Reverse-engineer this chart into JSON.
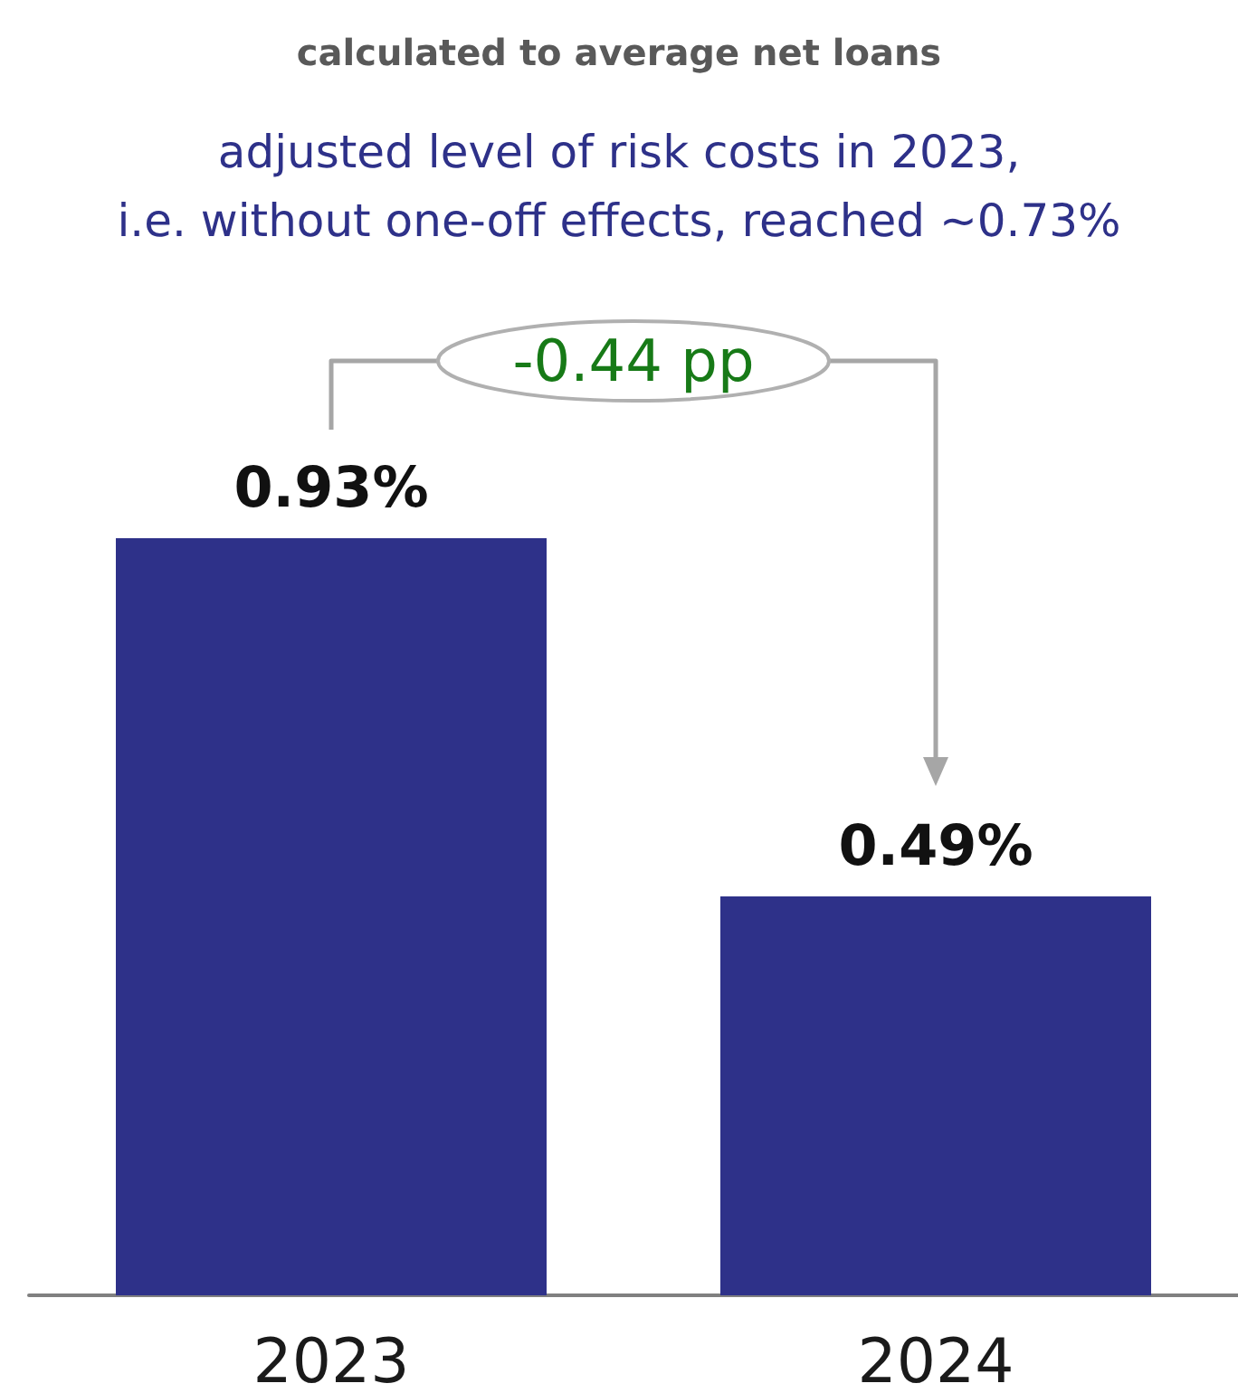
{
  "chart_data": {
    "type": "bar",
    "title": "calculated to average net loans",
    "subtitle": "adjusted level of risk costs in 2023,\ni.e. without one-off effects, reached ~0.73%",
    "categories": [
      "2023",
      "2024"
    ],
    "values": [
      0.93,
      0.49
    ],
    "value_labels": [
      "0.93%",
      "0.49%"
    ],
    "color": "#2e3189",
    "annotations": [
      "-0.44 pp"
    ]
  }
}
